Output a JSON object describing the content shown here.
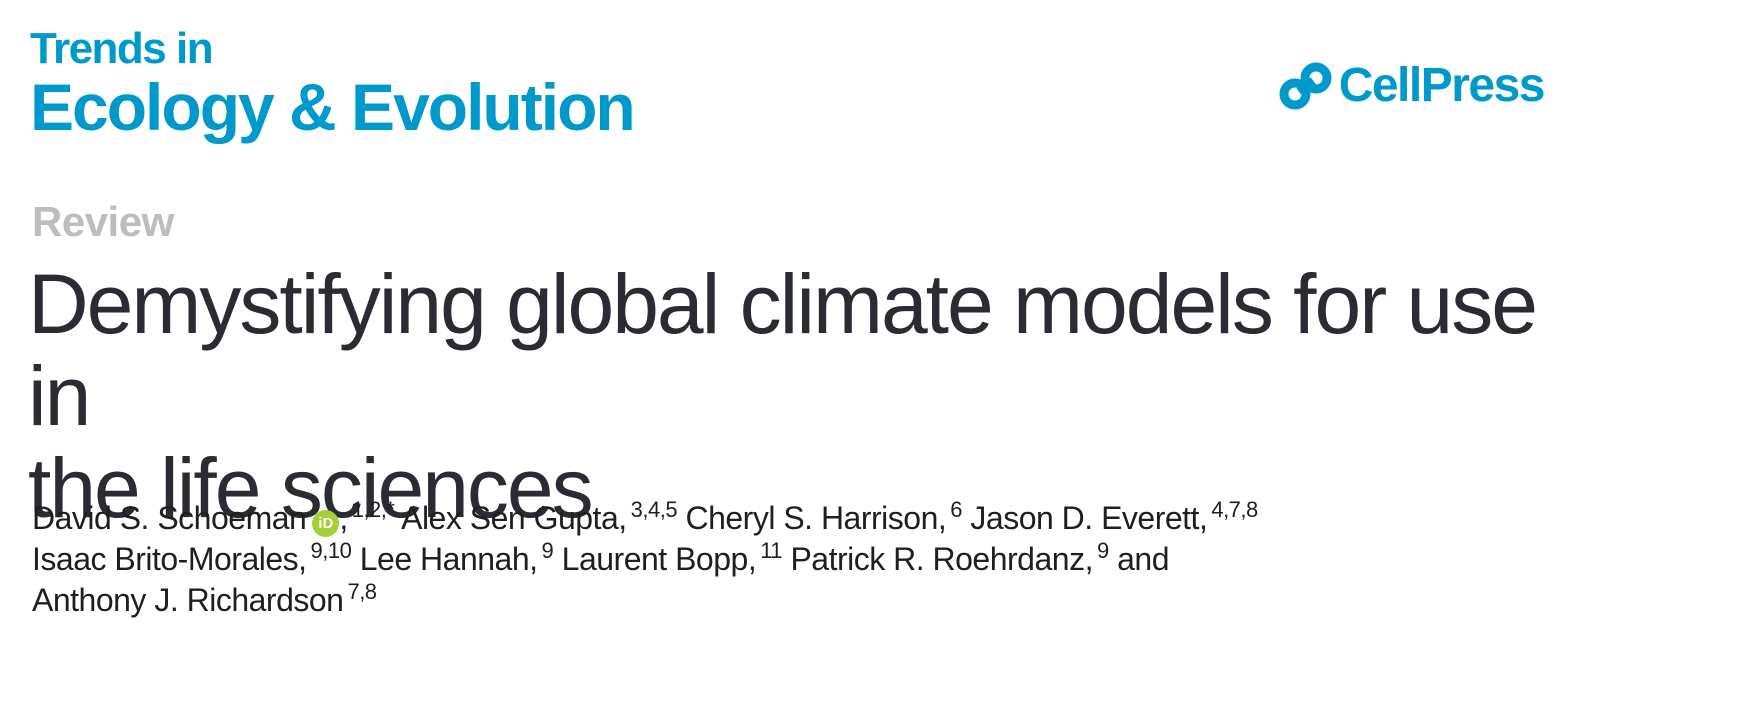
{
  "journal": {
    "line1": "Trends in",
    "line2": "Ecology & Evolution"
  },
  "publisher": {
    "logo_icon": "cellpress-logo-icon",
    "name": "CellPress",
    "color": "#0099cc"
  },
  "article": {
    "type": "Review",
    "title_line1": "Demystifying global climate models for use in",
    "title_line2": "the life sciences"
  },
  "authors": [
    {
      "name": "David S. Schoeman",
      "orcid": "iD",
      "affil": "1,2,*"
    },
    {
      "name": "Alex Sen Gupta,",
      "affil": "3,4,5"
    },
    {
      "name": "Cheryl S. Harrison,",
      "affil": "6"
    },
    {
      "name": "Jason D. Everett,",
      "affil": "4,7,8"
    },
    {
      "name": "Isaac Brito-Morales,",
      "affil": "9,10"
    },
    {
      "name": "Lee Hannah,",
      "affil": "9"
    },
    {
      "name": "Laurent Bopp,",
      "affil": "11"
    },
    {
      "name": "Patrick R. Roehrdanz,",
      "affil": "9"
    },
    {
      "name": "and",
      "affil": ""
    },
    {
      "name": "Anthony J. Richardson",
      "affil": "7,8"
    }
  ],
  "colors": {
    "journal_blue": "#0099cc",
    "orcid_green": "#a6ce39",
    "review_gray": "#bdbdbd",
    "title_text": "#2b2b33"
  }
}
